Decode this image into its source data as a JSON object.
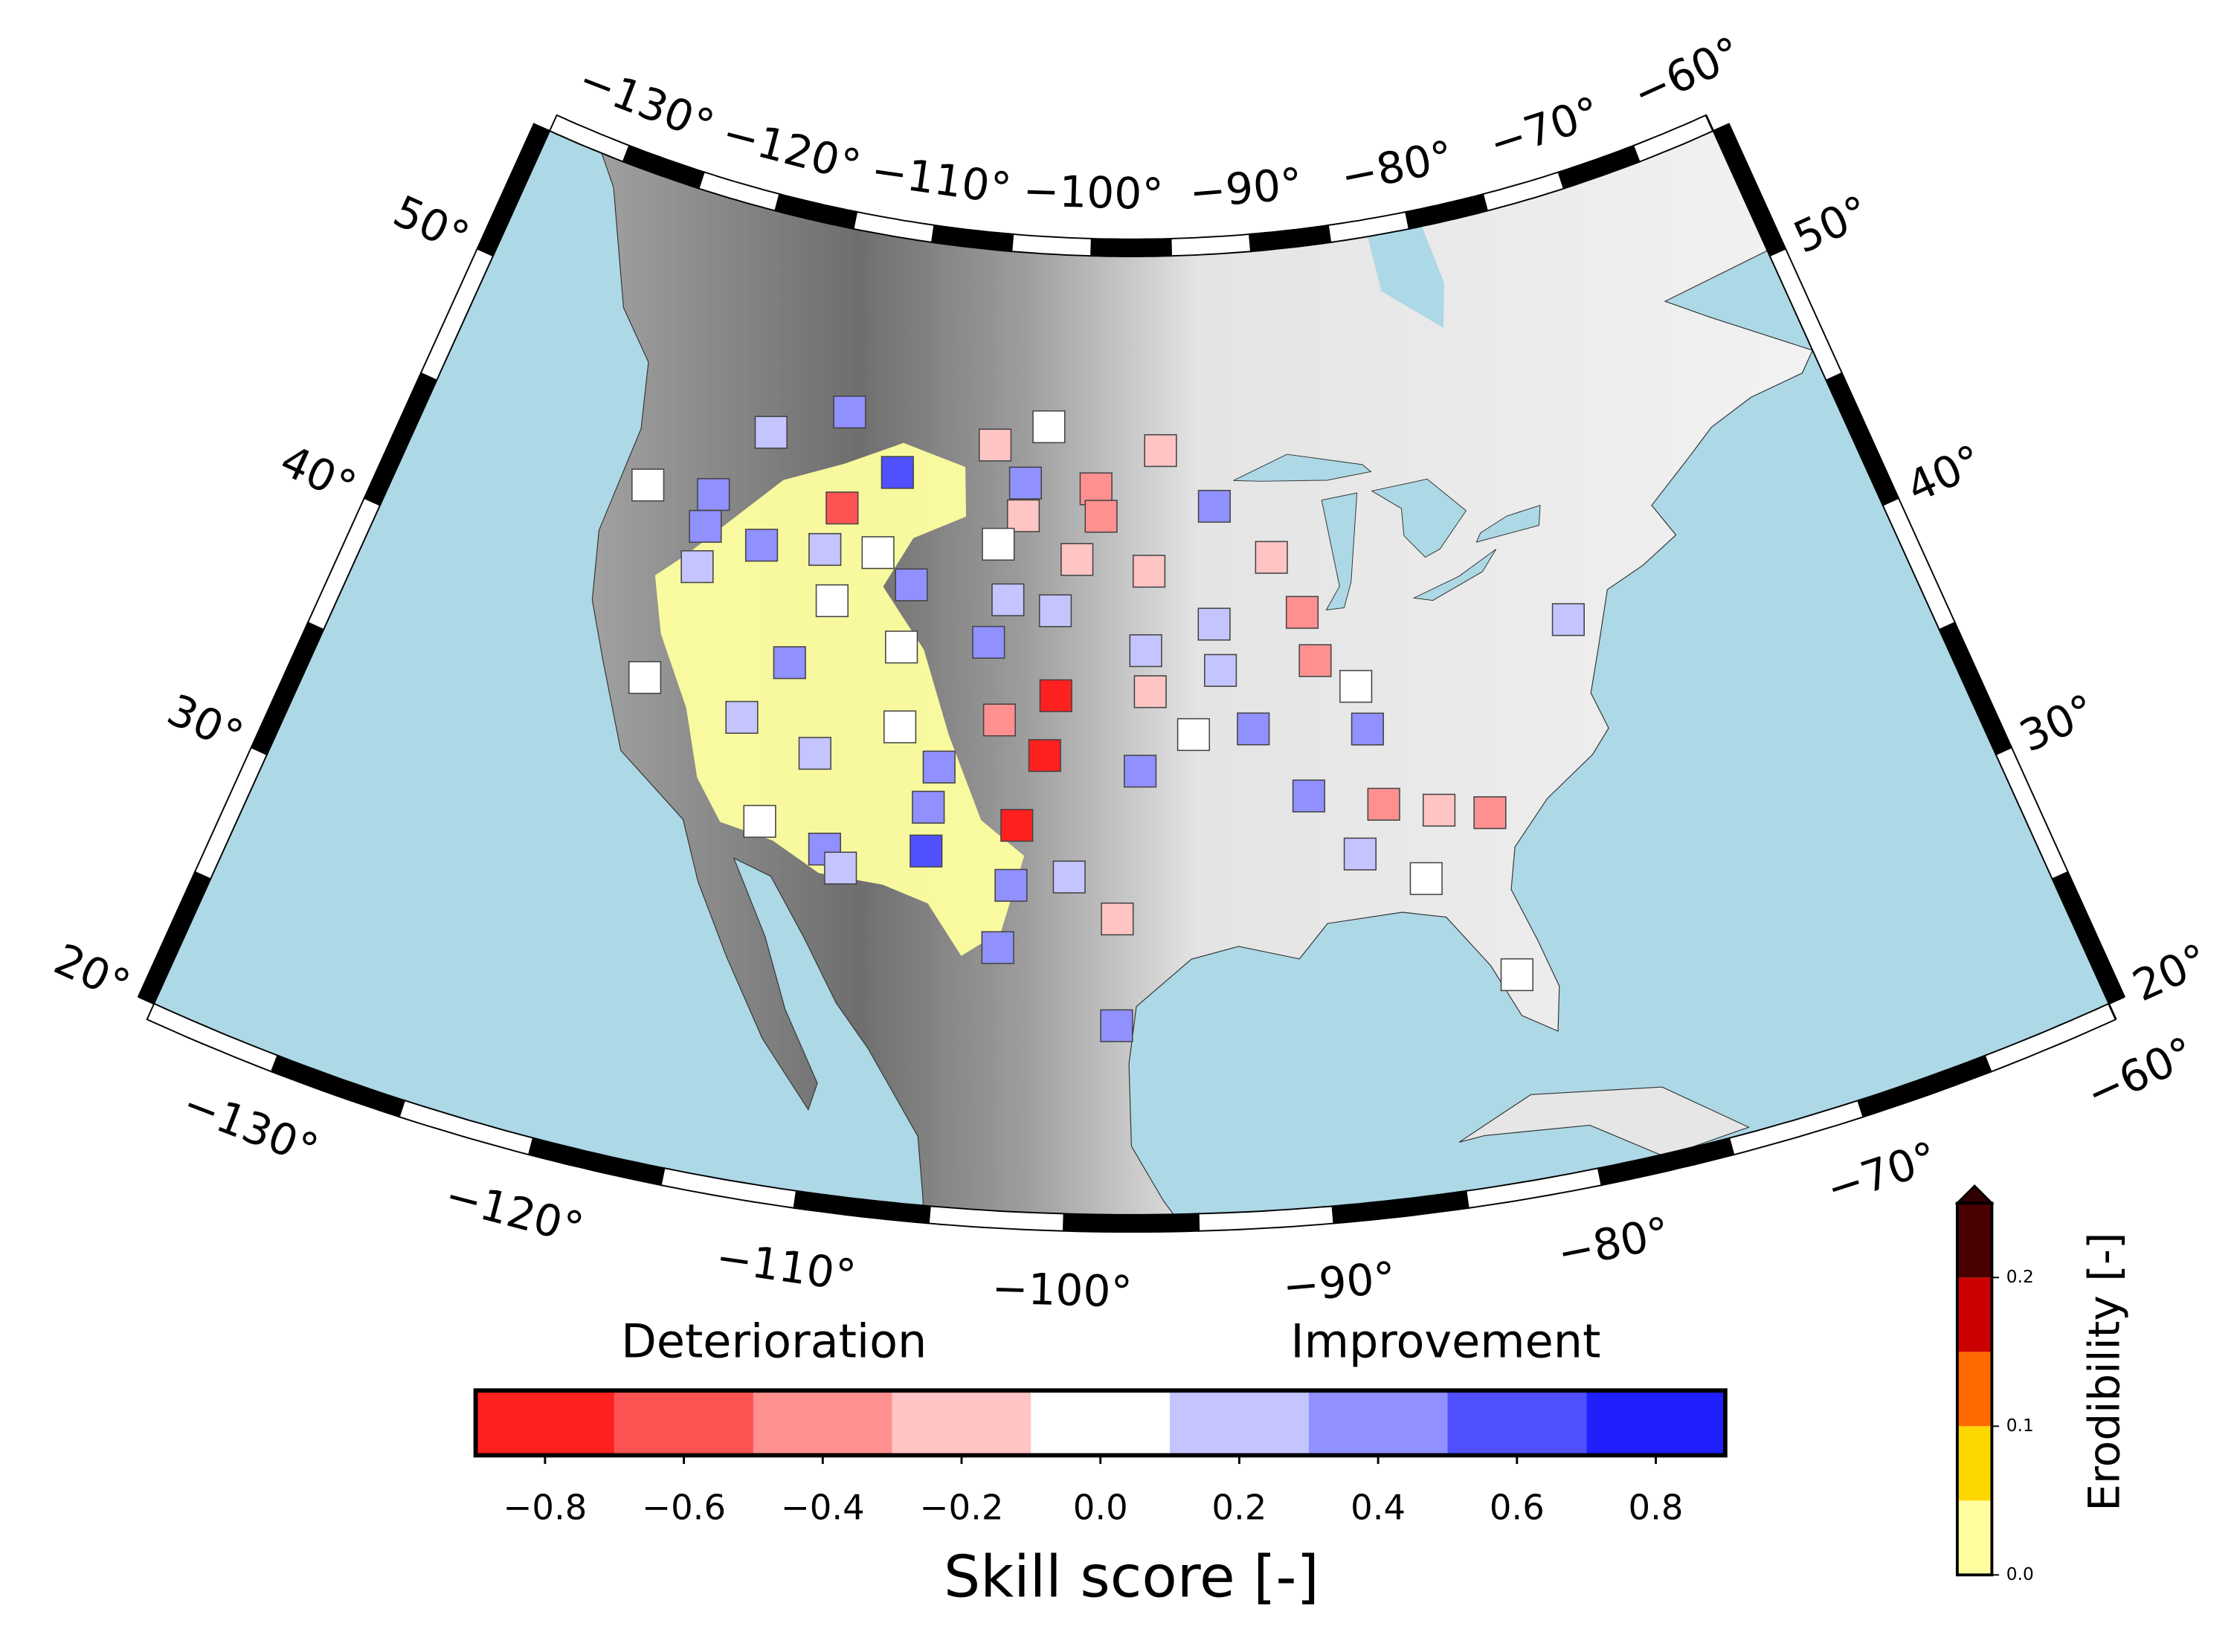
{
  "map": {
    "lon_range": [
      -135,
      -60
    ],
    "lat_range": [
      20,
      55
    ],
    "lon_ticks": [
      {
        "value": -130,
        "label": "−130°"
      },
      {
        "value": -120,
        "label": "−120°"
      },
      {
        "value": -110,
        "label": "−110°"
      },
      {
        "value": -100,
        "label": "−100°"
      },
      {
        "value": -90,
        "label": "−90°"
      },
      {
        "value": -80,
        "label": "−80°"
      },
      {
        "value": -70,
        "label": "−70°"
      },
      {
        "value": -60,
        "label": "−60°"
      }
    ],
    "lat_ticks": [
      {
        "value": 20,
        "label": "20°"
      },
      {
        "value": 30,
        "label": "30°"
      },
      {
        "value": 40,
        "label": "40°"
      },
      {
        "value": 50,
        "label": "50°"
      }
    ],
    "stations": [
      {
        "lon": -122.8,
        "lat": 44.1,
        "value": 0.0
      },
      {
        "lon": -119.4,
        "lat": 44.4,
        "value": 0.4
      },
      {
        "lon": -119.4,
        "lat": 43.2,
        "value": 0.4
      },
      {
        "lon": -117.2,
        "lat": 47.1,
        "value": 0.2
      },
      {
        "lon": -113.2,
        "lat": 48.4,
        "value": 0.4
      },
      {
        "lon": -110.1,
        "lat": 46.5,
        "value": 0.6
      },
      {
        "lon": -112.7,
        "lat": 44.9,
        "value": -0.6
      },
      {
        "lon": -116.4,
        "lat": 43.0,
        "value": 0.4
      },
      {
        "lon": -113.2,
        "lat": 43.3,
        "value": 0.2
      },
      {
        "lon": -110.5,
        "lat": 43.5,
        "value": 0.0
      },
      {
        "lon": -119.3,
        "lat": 41.7,
        "value": 0.2
      },
      {
        "lon": -108.6,
        "lat": 42.5,
        "value": 0.4
      },
      {
        "lon": -112.4,
        "lat": 41.5,
        "value": 0.0
      },
      {
        "lon": -113.9,
        "lat": 39.0,
        "value": 0.4
      },
      {
        "lon": -108.7,
        "lat": 40.2,
        "value": 0.0
      },
      {
        "lon": -120.4,
        "lat": 37.3,
        "value": 0.0
      },
      {
        "lon": -115.6,
        "lat": 36.7,
        "value": 0.2
      },
      {
        "lon": -112.0,
        "lat": 35.9,
        "value": 0.2
      },
      {
        "lon": -108.3,
        "lat": 37.3,
        "value": 0.0
      },
      {
        "lon": -106.3,
        "lat": 36.0,
        "value": 0.4
      },
      {
        "lon": -106.6,
        "lat": 34.5,
        "value": 0.4
      },
      {
        "lon": -113.9,
        "lat": 33.1,
        "value": 0.0
      },
      {
        "lon": -110.9,
        "lat": 32.5,
        "value": 0.4
      },
      {
        "lon": -110.1,
        "lat": 31.9,
        "value": 0.2
      },
      {
        "lon": -106.5,
        "lat": 32.9,
        "value": 0.6
      },
      {
        "lon": -105.0,
        "lat": 47.9,
        "value": -0.2
      },
      {
        "lon": -102.1,
        "lat": 48.7,
        "value": 0.0
      },
      {
        "lon": -103.2,
        "lat": 46.6,
        "value": 0.4
      },
      {
        "lon": -103.2,
        "lat": 45.4,
        "value": -0.2
      },
      {
        "lon": -104.4,
        "lat": 44.3,
        "value": 0.0
      },
      {
        "lon": -99.4,
        "lat": 46.5,
        "value": -0.4
      },
      {
        "lon": -99.1,
        "lat": 45.5,
        "value": -0.4
      },
      {
        "lon": -95.9,
        "lat": 47.9,
        "value": -0.2
      },
      {
        "lon": -100.3,
        "lat": 43.9,
        "value": -0.2
      },
      {
        "lon": -96.6,
        "lat": 43.5,
        "value": -0.2
      },
      {
        "lon": -93.1,
        "lat": 45.8,
        "value": 0.4
      },
      {
        "lon": -90.3,
        "lat": 43.8,
        "value": -0.2
      },
      {
        "lon": -103.7,
        "lat": 42.3,
        "value": 0.2
      },
      {
        "lon": -101.3,
        "lat": 42.0,
        "value": 0.2
      },
      {
        "lon": -104.5,
        "lat": 40.7,
        "value": 0.4
      },
      {
        "lon": -96.8,
        "lat": 40.6,
        "value": 0.2
      },
      {
        "lon": -93.4,
        "lat": 41.5,
        "value": 0.2
      },
      {
        "lon": -93.2,
        "lat": 39.8,
        "value": 0.2
      },
      {
        "lon": -89.0,
        "lat": 41.7,
        "value": -0.4
      },
      {
        "lon": -88.6,
        "lat": 39.9,
        "value": -0.4
      },
      {
        "lon": -86.8,
        "lat": 38.8,
        "value": 0.0
      },
      {
        "lon": -96.6,
        "lat": 39.1,
        "value": -0.2
      },
      {
        "lon": -101.1,
        "lat": 38.9,
        "value": -0.8
      },
      {
        "lon": -103.7,
        "lat": 37.9,
        "value": -0.4
      },
      {
        "lon": -101.5,
        "lat": 36.7,
        "value": -0.8
      },
      {
        "lon": -94.6,
        "lat": 37.5,
        "value": 0.0
      },
      {
        "lon": -91.8,
        "lat": 37.6,
        "value": 0.4
      },
      {
        "lon": -86.5,
        "lat": 37.2,
        "value": 0.4
      },
      {
        "lon": -97.1,
        "lat": 36.2,
        "value": 0.4
      },
      {
        "lon": -102.6,
        "lat": 34.1,
        "value": -0.8
      },
      {
        "lon": -102.7,
        "lat": 31.9,
        "value": 0.4
      },
      {
        "lon": -100.2,
        "lat": 32.3,
        "value": 0.2
      },
      {
        "lon": -98.1,
        "lat": 30.8,
        "value": -0.2
      },
      {
        "lon": -103.1,
        "lat": 29.6,
        "value": 0.4
      },
      {
        "lon": -98.1,
        "lat": 26.9,
        "value": 0.4
      },
      {
        "lon": -89.5,
        "lat": 35.0,
        "value": 0.4
      },
      {
        "lon": -86.2,
        "lat": 34.4,
        "value": -0.4
      },
      {
        "lon": -83.8,
        "lat": 33.9,
        "value": -0.2
      },
      {
        "lon": -81.6,
        "lat": 33.5,
        "value": -0.4
      },
      {
        "lon": -87.5,
        "lat": 32.7,
        "value": 0.2
      },
      {
        "lon": -84.8,
        "lat": 31.5,
        "value": 0.0
      },
      {
        "lon": -76.2,
        "lat": 39.8,
        "value": 0.2
      },
      {
        "lon": -81.7,
        "lat": 27.5,
        "value": 0.0
      }
    ],
    "skill_colorbar": {
      "label": "Skill score [-]",
      "left_text": "Deterioration",
      "right_text": "Improvement",
      "bins": [
        -0.9,
        -0.7,
        -0.5,
        -0.3,
        -0.1,
        0.1,
        0.3,
        0.5,
        0.7,
        0.9
      ],
      "colors": [
        "#ff2020",
        "#ff5252",
        "#ff9090",
        "#ffc4c4",
        "#ffffff",
        "#c4c4ff",
        "#9090ff",
        "#5050ff",
        "#2020ff"
      ],
      "xlim": [
        -0.9,
        0.9
      ],
      "xticks": [
        {
          "value": -0.8,
          "label": "−0.8"
        },
        {
          "value": -0.6,
          "label": "−0.6"
        },
        {
          "value": -0.4,
          "label": "−0.4"
        },
        {
          "value": -0.2,
          "label": "−0.2"
        },
        {
          "value": 0,
          "label": "0.0"
        },
        0.2,
        0.4,
        0.6,
        0.8
      ]
    },
    "erodibility_colorbar": {
      "label": "Erodibility [-]",
      "bins": [
        0,
        0.05,
        0.1,
        0.15,
        0.2,
        0.25
      ],
      "colors": [
        "#ffffa0",
        "#ffd700",
        "#ff6a00",
        "#cc0000",
        "#4a0000"
      ],
      "extend_color": "#300000",
      "ylim": [
        0,
        0.25
      ],
      "yticks": [
        {
          "value": 0,
          "label": "0.0"
        },
        0.1,
        0.2
      ]
    }
  }
}
